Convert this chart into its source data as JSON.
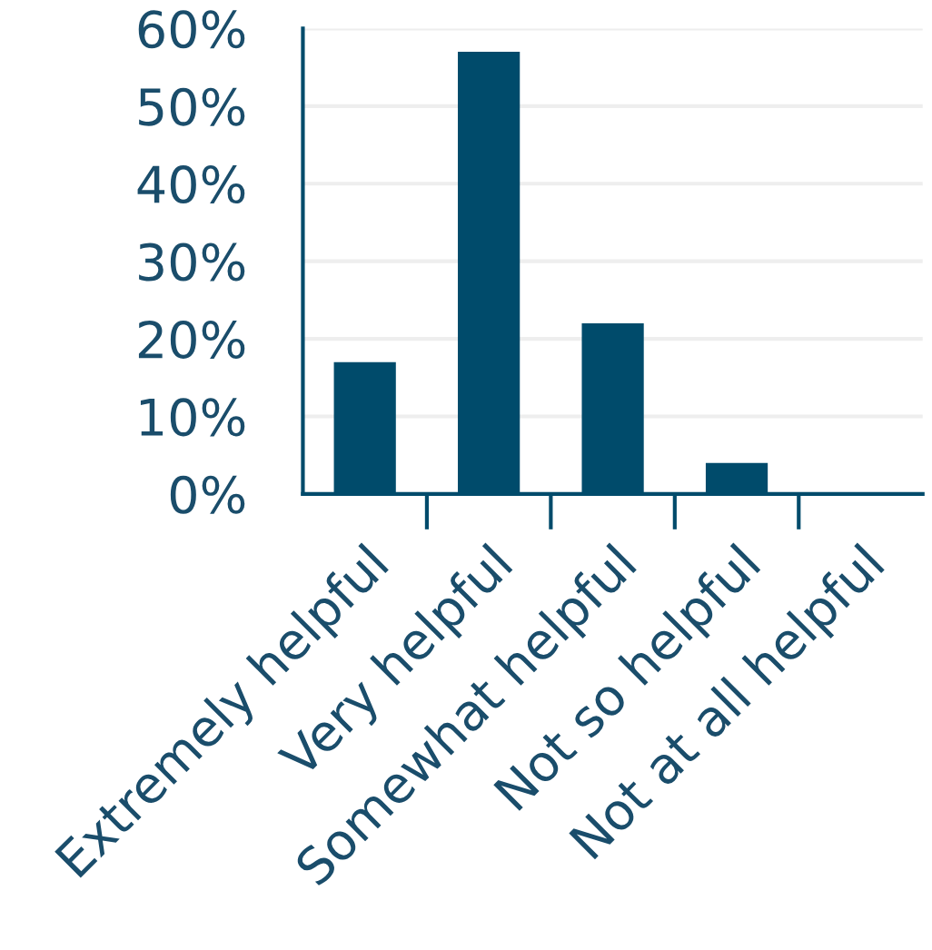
{
  "chart_data": {
    "type": "bar",
    "categories": [
      "Extremely helpful",
      "Very helpful",
      "Somewhat helpful",
      "Not so helpful",
      "Not at all helpful"
    ],
    "values": [
      17,
      57,
      22,
      4,
      0
    ],
    "color": "#004b6b",
    "ylim": [
      0,
      60
    ],
    "yticks": [
      {
        "value": 0,
        "label": "0%"
      },
      {
        "value": 10,
        "label": "10%"
      },
      {
        "value": 20,
        "label": "20%"
      },
      {
        "value": 30,
        "label": "30%"
      },
      {
        "value": 40,
        "label": "40%"
      },
      {
        "value": 50,
        "label": "50%"
      },
      {
        "value": 60,
        "label": "60%"
      }
    ],
    "grid": "y",
    "legend": false
  }
}
